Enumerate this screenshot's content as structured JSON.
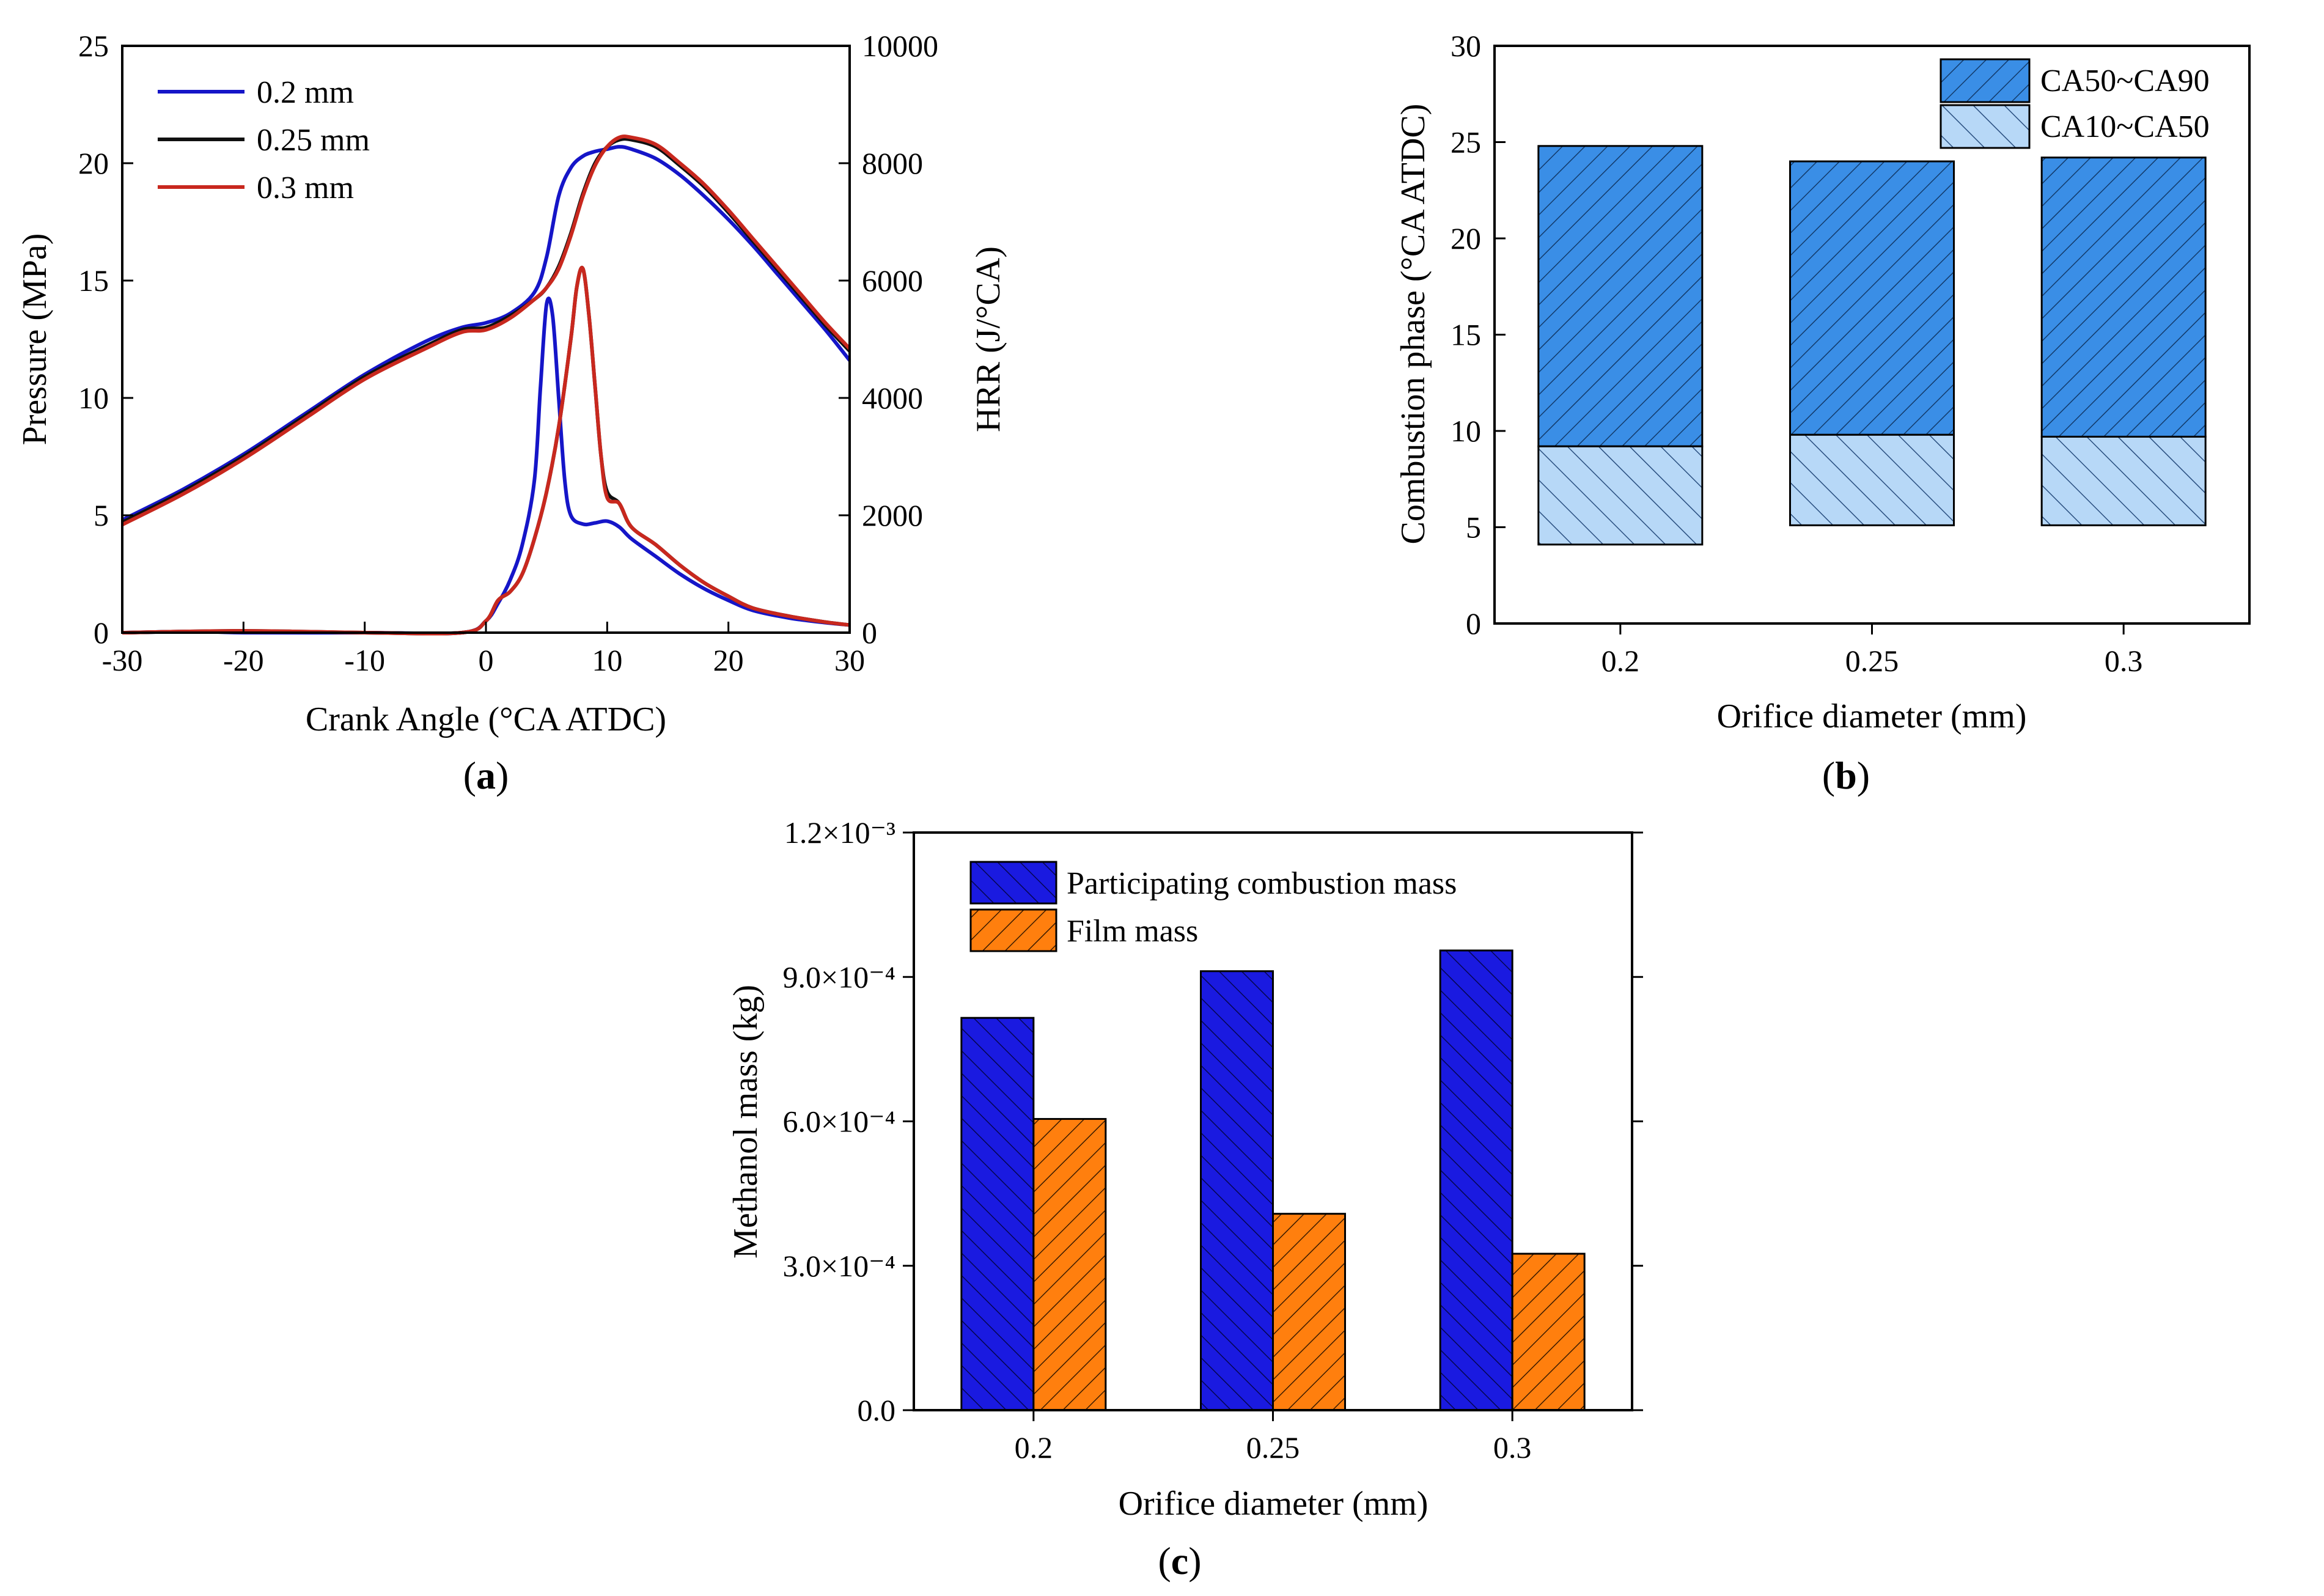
{
  "chart_data": [
    {
      "id": "a",
      "type": "line",
      "panel_label": "a",
      "xlabel": "Crank Angle (°CA ATDC)",
      "ylabel": "Pressure (MPa)",
      "y2label": "HRR (J/°CA)",
      "xlim": [
        -30,
        30
      ],
      "ylim": [
        0,
        25
      ],
      "y2lim": [
        0,
        10000
      ],
      "xticks": [
        "-30",
        "-20",
        "-10",
        "0",
        "10",
        "20",
        "30"
      ],
      "yticks": [
        "0",
        "5",
        "10",
        "15",
        "20",
        "25"
      ],
      "y2ticks": [
        "0",
        "2000",
        "4000",
        "6000",
        "8000",
        "10000"
      ],
      "legend_position": "top-left",
      "series": [
        {
          "name": "0.2 mm",
          "color": "#1515c8",
          "pressure": [
            [
              -30,
              4.8
            ],
            [
              -25,
              6.1
            ],
            [
              -20,
              7.6
            ],
            [
              -15,
              9.3
            ],
            [
              -10,
              11.0
            ],
            [
              -5,
              12.4
            ],
            [
              -2,
              13.0
            ],
            [
              0,
              13.2
            ],
            [
              2,
              13.6
            ],
            [
              4,
              14.5
            ],
            [
              5,
              16.0
            ],
            [
              6,
              18.6
            ],
            [
              7,
              19.8
            ],
            [
              8,
              20.3
            ],
            [
              9,
              20.5
            ],
            [
              10,
              20.6
            ],
            [
              11,
              20.7
            ],
            [
              12,
              20.6
            ],
            [
              14,
              20.2
            ],
            [
              16,
              19.5
            ],
            [
              18,
              18.6
            ],
            [
              20,
              17.6
            ],
            [
              22,
              16.5
            ],
            [
              24,
              15.3
            ],
            [
              26,
              14.1
            ],
            [
              28,
              12.9
            ],
            [
              30,
              11.6
            ]
          ],
          "hrr": [
            [
              -30,
              0
            ],
            [
              -24,
              20
            ],
            [
              -20,
              0
            ],
            [
              -10,
              0
            ],
            [
              -2,
              0
            ],
            [
              0,
              200
            ],
            [
              1,
              500
            ],
            [
              2,
              900
            ],
            [
              3,
              1500
            ],
            [
              4,
              2600
            ],
            [
              4.5,
              4200
            ],
            [
              5,
              5600
            ],
            [
              5.5,
              5400
            ],
            [
              6,
              4000
            ],
            [
              6.5,
              2600
            ],
            [
              7,
              2000
            ],
            [
              8,
              1850
            ],
            [
              9,
              1870
            ],
            [
              10,
              1900
            ],
            [
              11,
              1800
            ],
            [
              12,
              1600
            ],
            [
              14,
              1300
            ],
            [
              16,
              1000
            ],
            [
              18,
              750
            ],
            [
              20,
              550
            ],
            [
              22,
              380
            ],
            [
              25,
              250
            ],
            [
              28,
              170
            ],
            [
              30,
              130
            ]
          ]
        },
        {
          "name": "0.25 mm",
          "color": "#101010",
          "pressure": [
            [
              -30,
              4.7
            ],
            [
              -25,
              6.0
            ],
            [
              -20,
              7.5
            ],
            [
              -15,
              9.2
            ],
            [
              -10,
              10.9
            ],
            [
              -5,
              12.2
            ],
            [
              -2,
              12.9
            ],
            [
              0,
              13.0
            ],
            [
              2,
              13.5
            ],
            [
              4,
              14.2
            ],
            [
              5,
              14.7
            ],
            [
              6,
              15.6
            ],
            [
              7,
              17.0
            ],
            [
              8,
              18.7
            ],
            [
              9,
              20.0
            ],
            [
              10,
              20.7
            ],
            [
              11,
              21.0
            ],
            [
              12,
              21.0
            ],
            [
              14,
              20.7
            ],
            [
              16,
              19.9
            ],
            [
              18,
              19.0
            ],
            [
              20,
              17.9
            ],
            [
              22,
              16.7
            ],
            [
              24,
              15.5
            ],
            [
              26,
              14.3
            ],
            [
              28,
              13.1
            ],
            [
              30,
              12.0
            ]
          ],
          "hrr": [
            [
              -30,
              0
            ],
            [
              -20,
              30
            ],
            [
              -10,
              0
            ],
            [
              -2,
              0
            ],
            [
              0,
              200
            ],
            [
              1,
              550
            ],
            [
              2,
              700
            ],
            [
              3,
              1000
            ],
            [
              4,
              1600
            ],
            [
              5,
              2400
            ],
            [
              6,
              3500
            ],
            [
              7,
              5000
            ],
            [
              7.5,
              5900
            ],
            [
              8,
              6200
            ],
            [
              8.5,
              5400
            ],
            [
              9,
              4200
            ],
            [
              9.5,
              3000
            ],
            [
              10,
              2400
            ],
            [
              11,
              2200
            ],
            [
              12,
              1800
            ],
            [
              14,
              1500
            ],
            [
              16,
              1150
            ],
            [
              18,
              850
            ],
            [
              20,
              620
            ],
            [
              22,
              420
            ],
            [
              25,
              280
            ],
            [
              28,
              180
            ],
            [
              30,
              130
            ]
          ]
        },
        {
          "name": "0.3 mm",
          "color": "#c8281e",
          "pressure": [
            [
              -30,
              4.6
            ],
            [
              -25,
              5.9
            ],
            [
              -20,
              7.4
            ],
            [
              -15,
              9.1
            ],
            [
              -10,
              10.8
            ],
            [
              -5,
              12.1
            ],
            [
              -2,
              12.8
            ],
            [
              0,
              12.9
            ],
            [
              2,
              13.4
            ],
            [
              4,
              14.2
            ],
            [
              5,
              14.7
            ],
            [
              6,
              15.5
            ],
            [
              7,
              16.9
            ],
            [
              8,
              18.6
            ],
            [
              9,
              19.9
            ],
            [
              10,
              20.7
            ],
            [
              11,
              21.1
            ],
            [
              12,
              21.1
            ],
            [
              14,
              20.8
            ],
            [
              16,
              20.0
            ],
            [
              18,
              19.1
            ],
            [
              20,
              18.0
            ],
            [
              22,
              16.8
            ],
            [
              24,
              15.6
            ],
            [
              26,
              14.4
            ],
            [
              28,
              13.2
            ],
            [
              30,
              12.1
            ]
          ],
          "hrr": [
            [
              -30,
              0
            ],
            [
              -20,
              30
            ],
            [
              -10,
              0
            ],
            [
              -2,
              0
            ],
            [
              0,
              200
            ],
            [
              1,
              550
            ],
            [
              2,
              700
            ],
            [
              3,
              1000
            ],
            [
              4,
              1600
            ],
            [
              5,
              2400
            ],
            [
              6,
              3500
            ],
            [
              7,
              5000
            ],
            [
              7.5,
              5900
            ],
            [
              8,
              6200
            ],
            [
              8.5,
              5400
            ],
            [
              9,
              4200
            ],
            [
              9.5,
              3000
            ],
            [
              10,
              2300
            ],
            [
              11,
              2200
            ],
            [
              12,
              1800
            ],
            [
              14,
              1500
            ],
            [
              16,
              1150
            ],
            [
              18,
              850
            ],
            [
              20,
              620
            ],
            [
              22,
              420
            ],
            [
              25,
              280
            ],
            [
              28,
              180
            ],
            [
              30,
              130
            ]
          ]
        }
      ]
    },
    {
      "id": "b",
      "type": "bar",
      "stacked": "floating",
      "panel_label": "b",
      "xlabel": "Orifice diameter (mm)",
      "ylabel": "Combustion phase (°CA ATDC)",
      "categories": [
        "0.2",
        "0.25",
        "0.3"
      ],
      "ylim": [
        0,
        30
      ],
      "yticks": [
        "0",
        "5",
        "10",
        "15",
        "20",
        "25",
        "30"
      ],
      "legend_position": "top-right",
      "series": [
        {
          "name": "CA50~CA90",
          "color": "#3a8ee6",
          "hatch": "dense",
          "ranges": [
            [
              9.2,
              24.8
            ],
            [
              9.8,
              24.0
            ],
            [
              9.7,
              24.2
            ]
          ]
        },
        {
          "name": "CA10~CA50",
          "color": "#b7d8f7",
          "hatch": "sparse",
          "ranges": [
            [
              4.1,
              9.2
            ],
            [
              5.1,
              9.8
            ],
            [
              5.1,
              9.7
            ]
          ]
        }
      ]
    },
    {
      "id": "c",
      "type": "bar",
      "panel_label": "c",
      "xlabel": "Orifice diameter (mm)",
      "ylabel": "Methanol mass (kg)",
      "categories": [
        "0.2",
        "0.25",
        "0.3"
      ],
      "ylim": [
        0,
        0.0012
      ],
      "yticks": [
        "0.0",
        "3.0×10⁻⁴",
        "6.0×10⁻⁴",
        "9.0×10⁻⁴",
        "1.2×10⁻³"
      ],
      "legend_position": "top-left",
      "series": [
        {
          "name": "Participating combustion mass",
          "color": "#1a1ae0",
          "values": [
            0.000815,
            0.000912,
            0.000955
          ]
        },
        {
          "name": "Film mass",
          "color": "#ff7f0e",
          "values": [
            0.000605,
            0.000408,
            0.000325
          ]
        }
      ]
    }
  ]
}
